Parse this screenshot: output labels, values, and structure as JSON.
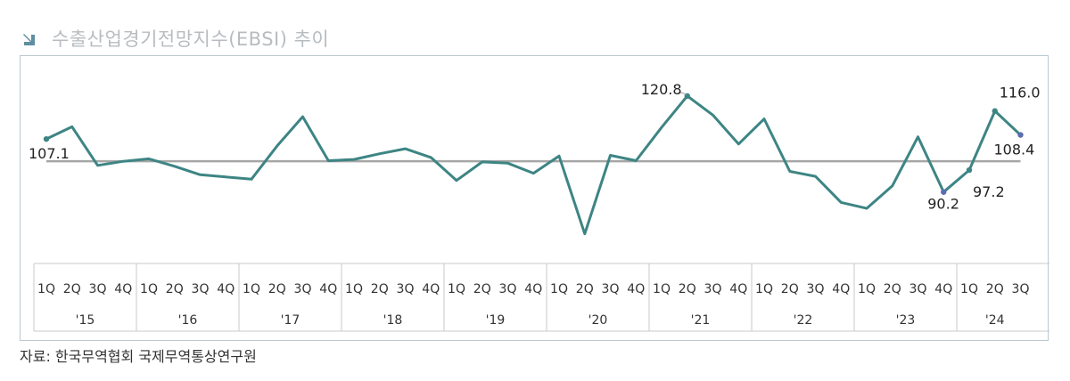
{
  "title": "수출산업경기전망지수(EBSI) 추이",
  "source": "자료: 한국무역협회 국제무역통상연구원",
  "chart_data": {
    "type": "line",
    "title": "수출산업경기전망지수(EBSI) 추이",
    "xlabel": "",
    "ylabel": "",
    "ylim": [
      70,
      125
    ],
    "baseline": 100,
    "colors": {
      "line": "#3d8584",
      "baseline": "#a6a6a6",
      "marker_start": "#3d8584",
      "marker_end": "#5a6fb0"
    },
    "years": [
      "'15",
      "'16",
      "'17",
      "'18",
      "'19",
      "'20",
      "'21",
      "'22",
      "'23",
      "'24"
    ],
    "quarters": [
      "1Q",
      "2Q",
      "3Q",
      "4Q"
    ],
    "categories": [
      "1Q '15",
      "2Q '15",
      "3Q '15",
      "4Q '15",
      "1Q '16",
      "2Q '16",
      "3Q '16",
      "4Q '16",
      "1Q '17",
      "2Q '17",
      "3Q '17",
      "4Q '17",
      "1Q '18",
      "2Q '18",
      "3Q '18",
      "4Q '18",
      "1Q '19",
      "2Q '19",
      "3Q '19",
      "4Q '19",
      "1Q '20",
      "2Q '20",
      "3Q '20",
      "4Q '20",
      "1Q '21",
      "2Q '21",
      "3Q '21",
      "4Q '21",
      "1Q '22",
      "2Q '22",
      "3Q '22",
      "4Q '22",
      "1Q '23",
      "2Q '23",
      "3Q '23",
      "4Q '23",
      "1Q '24",
      "2Q '24",
      "3Q '24"
    ],
    "values": [
      107.1,
      111.0,
      98.7,
      100.0,
      100.8,
      98.4,
      95.7,
      95.0,
      94.3,
      104.9,
      114.2,
      100.2,
      100.6,
      102.4,
      104.0,
      101.2,
      93.9,
      99.8,
      99.4,
      96.2,
      101.7,
      76.9,
      101.9,
      100.2,
      110.8,
      120.8,
      114.7,
      105.5,
      113.5,
      96.8,
      95.2,
      86.9,
      85.0,
      92.2,
      107.8,
      90.2,
      97.2,
      116.0,
      108.4
    ],
    "data_labels": [
      {
        "index": 0,
        "text": "107.1"
      },
      {
        "index": 25,
        "text": "120.8"
      },
      {
        "index": 35,
        "text": "90.2"
      },
      {
        "index": 36,
        "text": "97.2"
      },
      {
        "index": 37,
        "text": "116.0"
      },
      {
        "index": 38,
        "text": "108.4"
      }
    ],
    "markers": [
      0,
      25,
      35,
      36,
      37,
      38
    ]
  }
}
